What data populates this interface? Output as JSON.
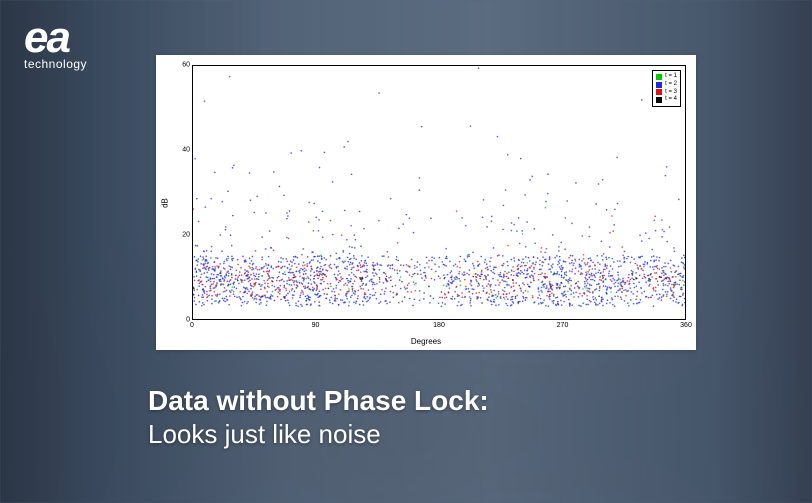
{
  "logo": {
    "mark_e": "e",
    "mark_a": "a",
    "sub": "technology"
  },
  "caption": {
    "line1": "Data without Phase Lock:",
    "line2": "Looks just like noise"
  },
  "chart": {
    "type": "scatter",
    "background_color": "#ffffff",
    "border_color": "#000000",
    "xlabel": "Degrees",
    "ylabel": "dB",
    "xlabel_fontsize": 8,
    "ylabel_fontsize": 8,
    "xlim": [
      0,
      360
    ],
    "ylim": [
      0,
      60
    ],
    "xticks": [
      0,
      90,
      180,
      270,
      360
    ],
    "yticks": [
      0,
      20,
      40,
      60
    ],
    "tick_fontsize": 7,
    "marker_size": 1.6,
    "marker_alpha": 0.85,
    "series": [
      {
        "id": "t1",
        "label": "t = 1",
        "color": "#00c800",
        "n_points": 60,
        "y_base": 8,
        "y_spread": 4,
        "y_tail": 14
      },
      {
        "id": "t2",
        "label": "t = 2",
        "color": "#1a2bd8",
        "n_points": 1700,
        "y_base": 9,
        "y_spread": 6,
        "y_tail": 28
      },
      {
        "id": "t3",
        "label": "t = 3",
        "color": "#e01010",
        "n_points": 420,
        "y_base": 9,
        "y_spread": 4,
        "y_tail": 14
      },
      {
        "id": "t4",
        "label": "t = 4",
        "color": "#0a0a0a",
        "n_points": 70,
        "y_base": 8,
        "y_spread": 3,
        "y_tail": 10
      }
    ],
    "legend": {
      "position": "top-right",
      "border_color": "#000000",
      "background": "#ffffff",
      "fontsize": 6
    },
    "density_profile_x": [
      {
        "x": 0,
        "w": 1.0
      },
      {
        "x": 30,
        "w": 0.95
      },
      {
        "x": 60,
        "w": 1.05
      },
      {
        "x": 90,
        "w": 1.1
      },
      {
        "x": 120,
        "w": 0.9
      },
      {
        "x": 150,
        "w": 0.55
      },
      {
        "x": 170,
        "w": 0.35
      },
      {
        "x": 190,
        "w": 0.7
      },
      {
        "x": 220,
        "w": 1.0
      },
      {
        "x": 260,
        "w": 1.1
      },
      {
        "x": 300,
        "w": 1.05
      },
      {
        "x": 340,
        "w": 0.9
      },
      {
        "x": 360,
        "w": 0.85
      }
    ]
  },
  "colors": {
    "page_overlay": "#52647a",
    "text_light": "#ffffff"
  }
}
